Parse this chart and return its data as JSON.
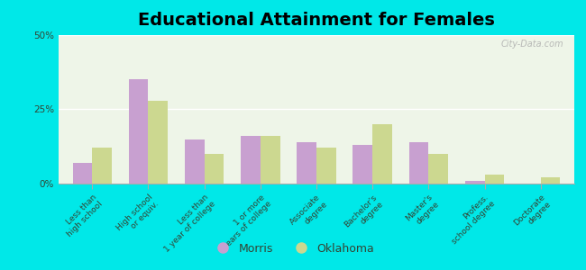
{
  "title": "Educational Attainment for Females",
  "categories": [
    "Less than\nhigh school",
    "High school\nor equiv.",
    "Less than\n1 year of college",
    "1 or more\nyears of college",
    "Associate\ndegree",
    "Bachelor's\ndegree",
    "Master's\ndegree",
    "Profess.\nschool degree",
    "Doctorate\ndegree"
  ],
  "morris_values": [
    7,
    35,
    15,
    16,
    14,
    13,
    14,
    1,
    0
  ],
  "oklahoma_values": [
    12,
    28,
    10,
    16,
    12,
    20,
    10,
    3,
    2
  ],
  "morris_color": "#c8a0d0",
  "oklahoma_color": "#ccd890",
  "background_color": "#00e8e8",
  "plot_bg": "#eef5e8",
  "ylim": [
    0,
    50
  ],
  "yticks": [
    0,
    25,
    50
  ],
  "ytick_labels": [
    "0%",
    "25%",
    "50%"
  ],
  "bar_width": 0.35,
  "legend_labels": [
    "Morris",
    "Oklahoma"
  ],
  "title_fontsize": 14,
  "tick_fontsize": 6.5,
  "legend_fontsize": 9,
  "text_color": "#334433"
}
